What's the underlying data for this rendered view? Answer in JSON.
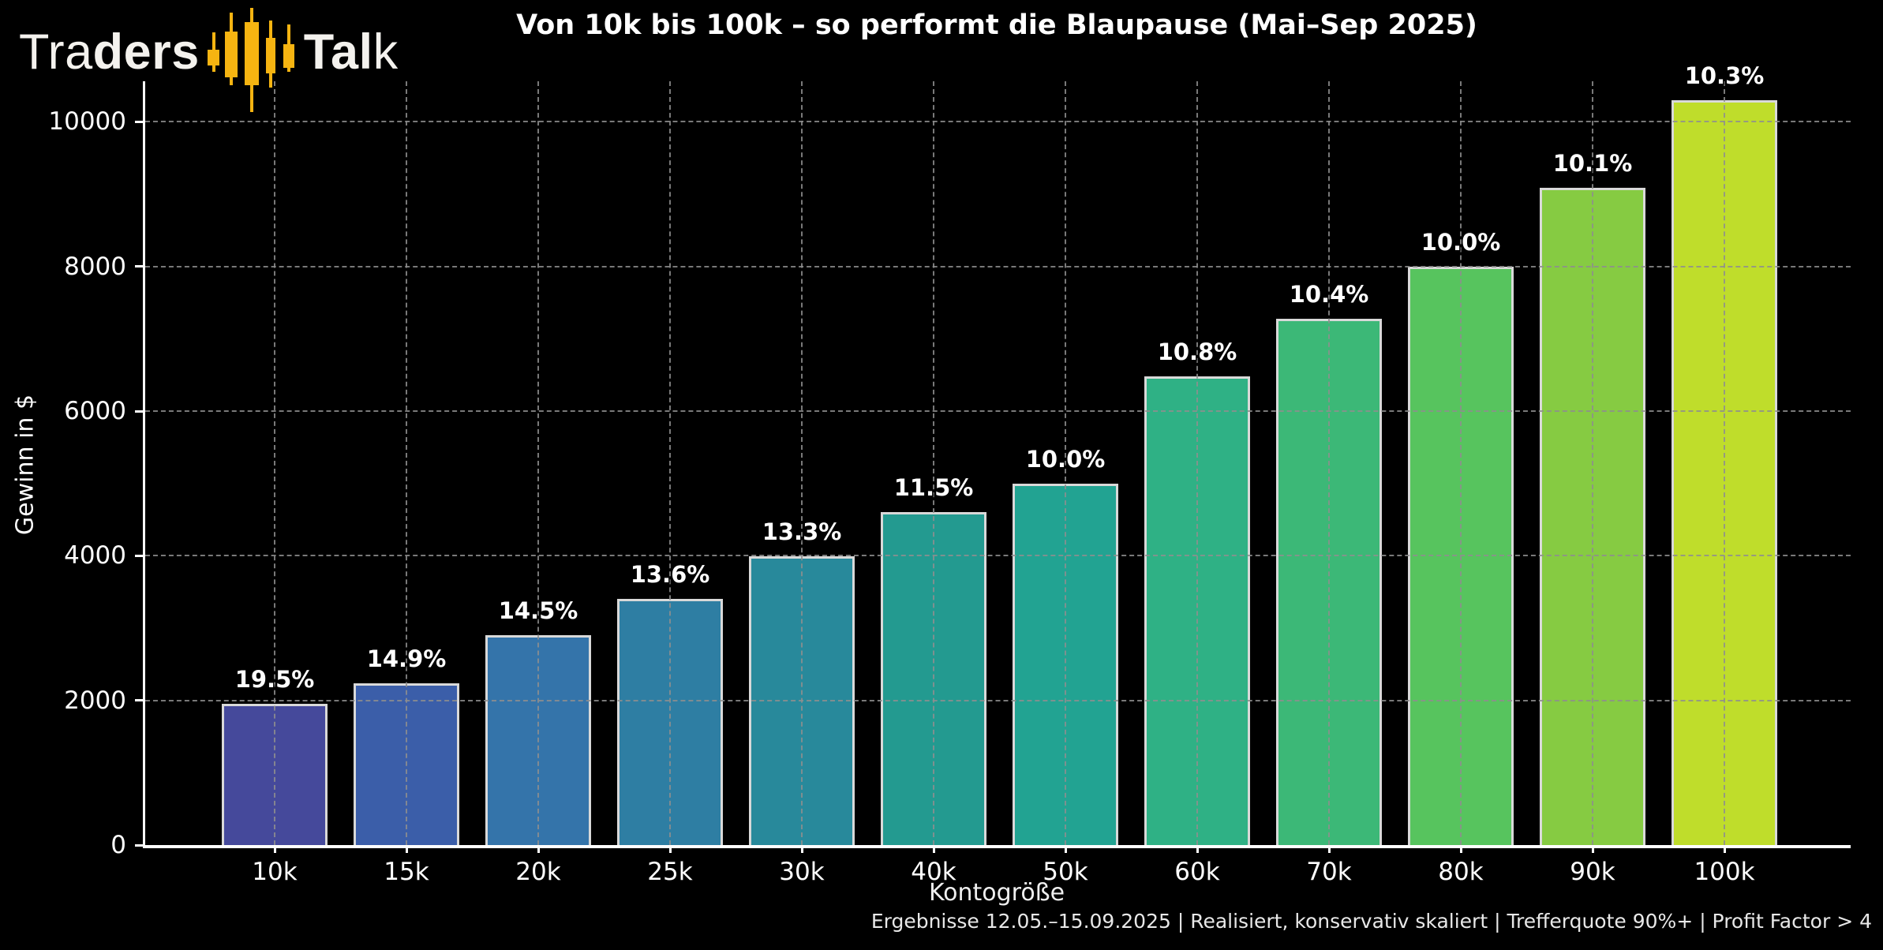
{
  "logo": {
    "part1_light": "Tra",
    "part1_bold": "ders",
    "part2_bold": "Tal",
    "part2_light": "k",
    "candle_color": "#F6B411"
  },
  "title": "Von 10k bis 100k – so performt die Blaupause (Mai–Sep 2025)",
  "footer": "Ergebnisse 12.05.–15.09.2025 | Realisiert, konservativ skaliert | Trefferquote 90%+ | Profit Factor > 4",
  "chart_data": {
    "type": "bar",
    "title": "Von 10k bis 100k – so performt die Blaupause (Mai–Sep 2025)",
    "xlabel": "Kontogröße",
    "ylabel": "Gewinn in $",
    "categories": [
      "10k",
      "15k",
      "20k",
      "25k",
      "30k",
      "40k",
      "50k",
      "60k",
      "70k",
      "80k",
      "90k",
      "100k"
    ],
    "values": [
      1950,
      2235,
      2900,
      3400,
      3990,
      4600,
      5000,
      6480,
      7280,
      8000,
      9090,
      10300
    ],
    "bar_labels": [
      "19.5%",
      "14.9%",
      "14.5%",
      "13.6%",
      "13.3%",
      "11.5%",
      "10.0%",
      "10.8%",
      "10.4%",
      "10.0%",
      "10.1%",
      "10.3%"
    ],
    "bar_colors": [
      "#45499B",
      "#3B5EA9",
      "#3474AA",
      "#2E7EA3",
      "#28899B",
      "#239A90",
      "#22A392",
      "#2FB185",
      "#3CB877",
      "#57C45E",
      "#86CB42",
      "#BFDD2B"
    ],
    "yticks": [
      0,
      2000,
      4000,
      6000,
      8000,
      10000
    ],
    "ylim": [
      0,
      10560
    ],
    "grid": "dashed-gray",
    "legend": "none",
    "background": "#000000"
  }
}
